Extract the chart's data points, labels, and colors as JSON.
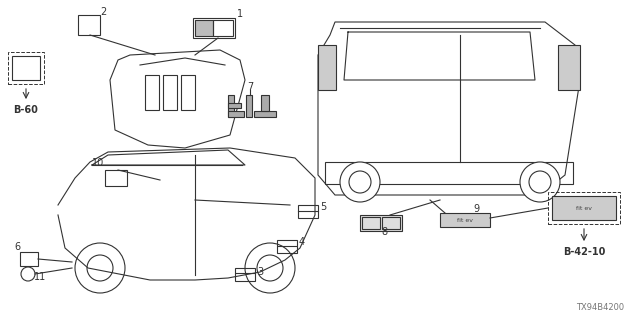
{
  "bg_color": "#ffffff",
  "line_color": "#333333",
  "fig_id": "TX94B4200",
  "ref_b60": "B-60",
  "ref_b42": "B-42-10"
}
